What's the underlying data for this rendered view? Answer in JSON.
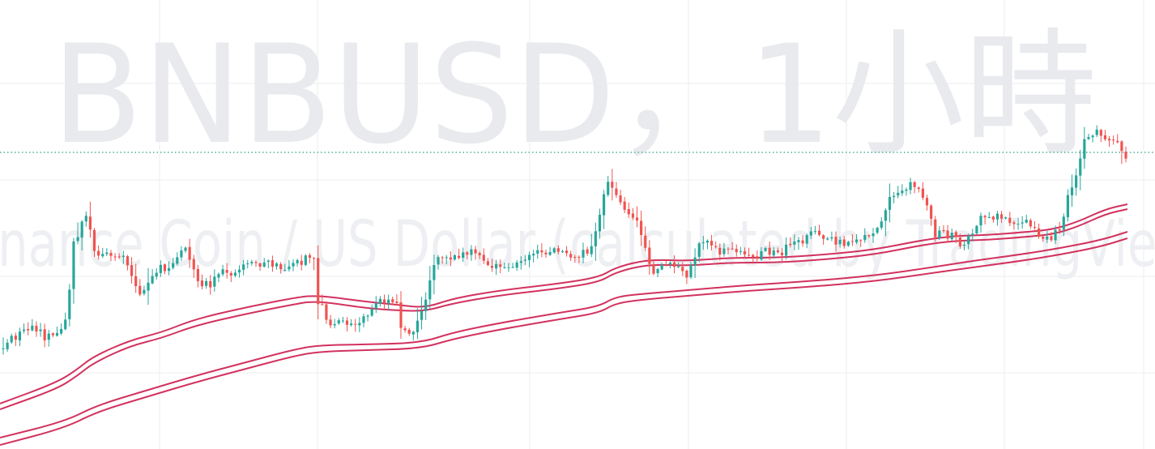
{
  "watermark": {
    "symbol_interval": "BNBUSD，1小時",
    "description": "Binance Coin / US Dollar (calculated by TradingView)"
  },
  "colors": {
    "up": "#26a69a",
    "down": "#ef5350",
    "bands": "#d2325e",
    "last_price_line": "#2e9c87",
    "grid": "#eceef2",
    "background": "#ffffff"
  },
  "chart_data": {
    "type": "candlestick",
    "symbol": "BNBUSD",
    "interval": "1小時",
    "candles_count": 272,
    "overlays": [
      {
        "style": "upper channel (two lines)"
      },
      {
        "style": "lower channel (two lines)"
      }
    ],
    "last_price_line": {
      "style": "dotted"
    },
    "grid": true,
    "legend": "none"
  }
}
